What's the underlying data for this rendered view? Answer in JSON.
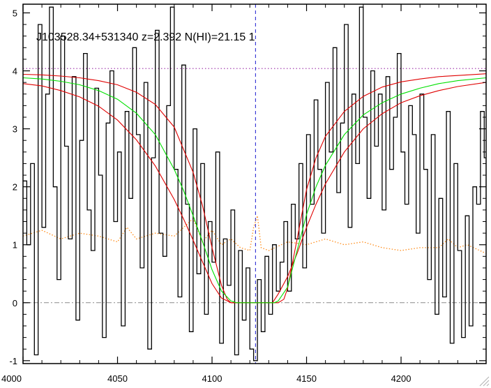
{
  "chart_data": {
    "type": "line",
    "title": "J103528.34+531340 z=2.392 N(HI)=21.15 1",
    "xlabel": "",
    "ylabel": "",
    "xlim": [
      4000,
      4245
    ],
    "ylim": [
      -1.05,
      5.15
    ],
    "x_ticks": [
      4000,
      4050,
      4100,
      4150,
      4200
    ],
    "y_ticks": [
      -1,
      0,
      1,
      2,
      3,
      4,
      5
    ],
    "grid": false,
    "legend": "none",
    "reference_lines": {
      "zero_level": 0,
      "continuum_level": 4.04,
      "line_center": 4123
    },
    "series": [
      {
        "role": "flux",
        "style": "step",
        "color": "#000000",
        "x": [
          4000,
          4002,
          4004,
          4006,
          4008,
          4010,
          4012,
          4014,
          4016,
          4018,
          4020,
          4022,
          4024,
          4026,
          4028,
          4030,
          4032,
          4034,
          4036,
          4038,
          4040,
          4042,
          4044,
          4046,
          4048,
          4050,
          4052,
          4054,
          4056,
          4058,
          4060,
          4062,
          4064,
          4066,
          4068,
          4070,
          4072,
          4074,
          4076,
          4078,
          4080,
          4082,
          4084,
          4086,
          4088,
          4090,
          4092,
          4094,
          4096,
          4098,
          4100,
          4102,
          4104,
          4106,
          4108,
          4110,
          4112,
          4114,
          4116,
          4118,
          4120,
          4122,
          4124,
          4126,
          4128,
          4130,
          4132,
          4134,
          4136,
          4138,
          4140,
          4142,
          4144,
          4146,
          4148,
          4150,
          4152,
          4154,
          4156,
          4158,
          4160,
          4162,
          4164,
          4166,
          4168,
          4170,
          4172,
          4174,
          4176,
          4178,
          4180,
          4182,
          4184,
          4186,
          4188,
          4190,
          4192,
          4194,
          4196,
          4198,
          4200,
          4202,
          4204,
          4206,
          4208,
          4210,
          4212,
          4214,
          4216,
          4218,
          4220,
          4222,
          4224,
          4226,
          4228,
          4230,
          4232,
          4234,
          4236,
          4238,
          4240,
          4242,
          4244
        ],
        "y": [
          2.1,
          1.0,
          2.4,
          -0.9,
          4.8,
          1.3,
          3.6,
          5.1,
          2.0,
          0.4,
          4.6,
          2.7,
          1.1,
          3.9,
          -0.3,
          2.8,
          4.3,
          1.6,
          0.9,
          3.7,
          2.2,
          -0.6,
          3.1,
          4.0,
          1.4,
          2.6,
          -0.4,
          3.3,
          1.8,
          4.4,
          2.9,
          0.6,
          3.8,
          -0.8,
          2.5,
          4.7,
          1.2,
          0.8,
          3.4,
          5.1,
          2.3,
          0.1,
          4.1,
          1.7,
          -0.5,
          3.0,
          0.5,
          2.4,
          -0.2,
          1.4,
          0.7,
          2.6,
          -0.7,
          1.1,
          0.3,
          1.6,
          -0.9,
          0.9,
          -0.3,
          0.6,
          -0.8,
          -1.0,
          0.4,
          -0.5,
          0.8,
          -0.2,
          1.0,
          0.2,
          0.7,
          1.4,
          0.2,
          1.7,
          1.1,
          2.4,
          0.6,
          2.9,
          1.7,
          3.5,
          2.3,
          1.2,
          3.8,
          2.6,
          4.4,
          1.9,
          3.1,
          4.8,
          1.3,
          3.6,
          2.4,
          5.1,
          3.2,
          1.8,
          4.0,
          2.7,
          3.6,
          1.6,
          3.9,
          2.3,
          3.2,
          4.3,
          2.6,
          1.7,
          3.4,
          2.9,
          1.2,
          3.6,
          2.3,
          0.4,
          2.9,
          -0.2,
          1.8,
          0.1,
          3.3,
          -0.7,
          2.4,
          0.9,
          -0.6,
          1.5,
          -0.4,
          2.0,
          1.7,
          3.3,
          2.5
        ]
      },
      {
        "role": "error",
        "style": "dotted",
        "color": "#ff8c1a",
        "x": [
          4000,
          4010,
          4020,
          4030,
          4040,
          4050,
          4055,
          4060,
          4070,
          4080,
          4090,
          4095,
          4100,
          4105,
          4110,
          4115,
          4120,
          4122,
          4124,
          4126,
          4130,
          4140,
          4150,
          4160,
          4170,
          4180,
          4190,
          4200,
          4210,
          4220,
          4225,
          4230,
          4235,
          4245
        ],
        "y": [
          1.15,
          1.25,
          1.1,
          1.2,
          1.15,
          1.05,
          1.3,
          1.1,
          1.2,
          1.15,
          1.45,
          1.05,
          1.25,
          1.0,
          1.1,
          0.95,
          0.9,
          1.3,
          1.5,
          0.95,
          0.9,
          1.05,
          1.0,
          1.1,
          1.0,
          1.05,
          0.95,
          0.9,
          0.95,
          0.95,
          1.1,
          0.95,
          1.0,
          0.85
        ]
      },
      {
        "role": "fit",
        "style": "line",
        "color": "#00e000",
        "x": [
          4000,
          4010,
          4020,
          4030,
          4040,
          4050,
          4060,
          4070,
          4080,
          4085,
          4090,
          4095,
          4100,
          4105,
          4110,
          4113,
          4115,
          4120,
          4125,
          4130,
          4133,
          4135,
          4140,
          4145,
          4150,
          4155,
          4160,
          4170,
          4180,
          4190,
          4200,
          4210,
          4220,
          4230,
          4245
        ],
        "y": [
          3.88,
          3.86,
          3.82,
          3.76,
          3.66,
          3.51,
          3.27,
          2.9,
          2.3,
          1.93,
          1.5,
          1.05,
          0.57,
          0.2,
          0.03,
          0.0,
          0.0,
          0.0,
          0.0,
          0.0,
          0.0,
          0.03,
          0.27,
          0.9,
          1.52,
          2.0,
          2.37,
          2.9,
          3.24,
          3.45,
          3.6,
          3.7,
          3.78,
          3.83,
          3.88
        ]
      },
      {
        "role": "fit-upper",
        "style": "line",
        "color": "#e00000",
        "x": [
          4000,
          4010,
          4020,
          4030,
          4040,
          4050,
          4060,
          4070,
          4080,
          4090,
          4095,
          4100,
          4105,
          4108,
          4110,
          4115,
          4120,
          4125,
          4130,
          4135,
          4138,
          4140,
          4145,
          4150,
          4155,
          4160,
          4170,
          4180,
          4190,
          4200,
          4210,
          4220,
          4230,
          4245
        ],
        "y": [
          3.94,
          3.93,
          3.91,
          3.88,
          3.83,
          3.76,
          3.63,
          3.42,
          3.03,
          2.25,
          1.67,
          0.95,
          0.3,
          0.06,
          0.0,
          0.0,
          0.0,
          0.0,
          0.0,
          0.0,
          0.06,
          0.25,
          1.1,
          1.95,
          2.5,
          2.87,
          3.3,
          3.56,
          3.72,
          3.81,
          3.86,
          3.9,
          3.92,
          3.95
        ]
      },
      {
        "role": "fit-lower",
        "style": "line",
        "color": "#e00000",
        "x": [
          4000,
          4010,
          4020,
          4030,
          4040,
          4050,
          4060,
          4070,
          4080,
          4085,
          4090,
          4095,
          4100,
          4105,
          4110,
          4115,
          4120,
          4125,
          4130,
          4132,
          4135,
          4140,
          4145,
          4150,
          4155,
          4160,
          4170,
          4180,
          4190,
          4200,
          4210,
          4220,
          4230,
          4245
        ],
        "y": [
          3.78,
          3.74,
          3.66,
          3.55,
          3.39,
          3.15,
          2.81,
          2.36,
          1.78,
          1.44,
          1.08,
          0.7,
          0.33,
          0.08,
          0.0,
          0.0,
          0.0,
          0.0,
          0.0,
          0.0,
          0.15,
          0.45,
          0.85,
          1.3,
          1.7,
          2.05,
          2.6,
          3.0,
          3.26,
          3.45,
          3.57,
          3.66,
          3.73,
          3.8
        ]
      }
    ]
  }
}
